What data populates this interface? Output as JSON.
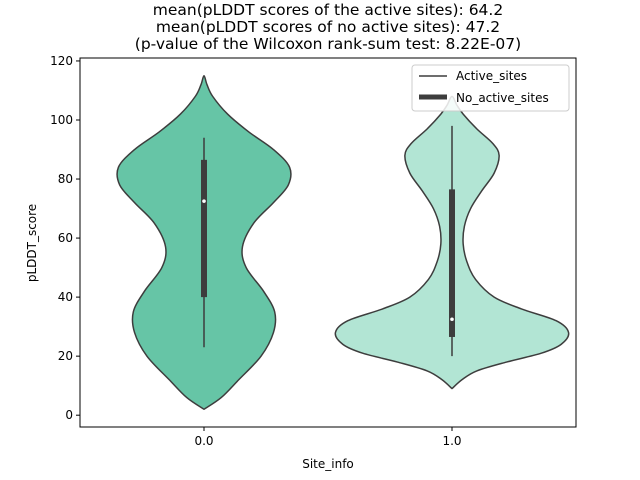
{
  "chart_data": {
    "type": "violin",
    "title_lines": [
      "mean(pLDDT scores of the active sites): 64.2",
      "mean(pLDDT scores of no active sites): 47.2",
      "(p-value of the Wilcoxon rank-sum test: 8.22E-07)"
    ],
    "xlabel": "Site_info",
    "ylabel": "pLDDT_score",
    "categories": [
      "0.0",
      "1.0"
    ],
    "ylim": [
      -4,
      121
    ],
    "yticks": [
      0,
      20,
      40,
      60,
      80,
      100,
      120
    ],
    "legend": {
      "placement": "top-right",
      "entries": [
        {
          "label": "Active_sites",
          "style": "thin-line"
        },
        {
          "label": "No_active_sites",
          "style": "thick-line"
        }
      ]
    },
    "series": [
      {
        "name": "0.0",
        "color": "#66c5a6",
        "median": 72.5,
        "q1": 40,
        "q3": 86.5,
        "whisker_low": 23,
        "whisker_high": 94,
        "min": 2,
        "max": 115,
        "density_profile": [
          {
            "y": 2,
            "w": 0.0
          },
          {
            "y": 6,
            "w": 0.07
          },
          {
            "y": 12,
            "w": 0.14
          },
          {
            "y": 20,
            "w": 0.23
          },
          {
            "y": 28,
            "w": 0.28
          },
          {
            "y": 35,
            "w": 0.285
          },
          {
            "y": 42,
            "w": 0.24
          },
          {
            "y": 50,
            "w": 0.17
          },
          {
            "y": 57,
            "w": 0.155
          },
          {
            "y": 65,
            "w": 0.2
          },
          {
            "y": 72,
            "w": 0.28
          },
          {
            "y": 78,
            "w": 0.34
          },
          {
            "y": 84,
            "w": 0.345
          },
          {
            "y": 90,
            "w": 0.28
          },
          {
            "y": 96,
            "w": 0.18
          },
          {
            "y": 102,
            "w": 0.095
          },
          {
            "y": 108,
            "w": 0.035
          },
          {
            "y": 112,
            "w": 0.012
          },
          {
            "y": 115,
            "w": 0.0
          }
        ]
      },
      {
        "name": "1.0",
        "color": "#b2e5d4",
        "median": 32.5,
        "q1": 26.5,
        "q3": 76.5,
        "whisker_low": 20,
        "whisker_high": 98,
        "min": 9,
        "max": 108,
        "density_profile": [
          {
            "y": 9,
            "w": 0.0
          },
          {
            "y": 12,
            "w": 0.04
          },
          {
            "y": 15,
            "w": 0.1
          },
          {
            "y": 18,
            "w": 0.22
          },
          {
            "y": 21,
            "w": 0.36
          },
          {
            "y": 24,
            "w": 0.44
          },
          {
            "y": 28,
            "w": 0.47
          },
          {
            "y": 32,
            "w": 0.42
          },
          {
            "y": 36,
            "w": 0.28
          },
          {
            "y": 40,
            "w": 0.17
          },
          {
            "y": 46,
            "w": 0.095
          },
          {
            "y": 52,
            "w": 0.06
          },
          {
            "y": 58,
            "w": 0.045
          },
          {
            "y": 64,
            "w": 0.05
          },
          {
            "y": 70,
            "w": 0.075
          },
          {
            "y": 76,
            "w": 0.12
          },
          {
            "y": 82,
            "w": 0.17
          },
          {
            "y": 88,
            "w": 0.19
          },
          {
            "y": 92,
            "w": 0.165
          },
          {
            "y": 97,
            "w": 0.1
          },
          {
            "y": 102,
            "w": 0.045
          },
          {
            "y": 105,
            "w": 0.02
          },
          {
            "y": 108,
            "w": 0.0
          }
        ]
      }
    ]
  }
}
